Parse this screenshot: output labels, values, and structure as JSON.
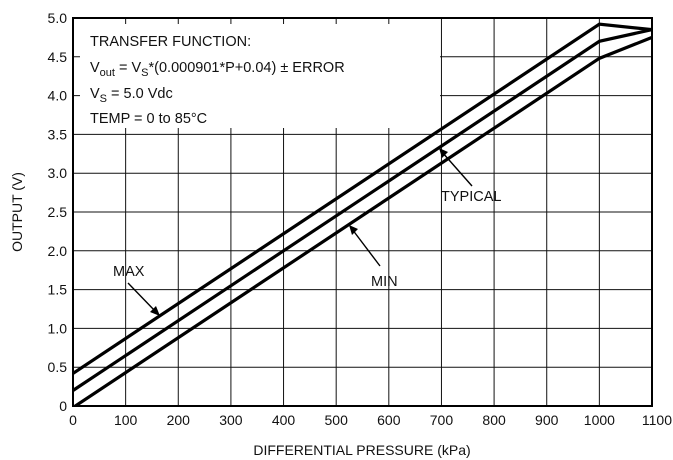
{
  "chart_data": {
    "type": "line",
    "xlabel": "DIFFERENTIAL PRESSURE (kPa)",
    "ylabel": "OUTPUT (V)",
    "xlim": [
      0,
      1100
    ],
    "ylim": [
      0,
      5.0
    ],
    "x_ticks": [
      "0",
      "100",
      "200",
      "300",
      "400",
      "500",
      "600",
      "700",
      "800",
      "900",
      "1000",
      "1100"
    ],
    "y_ticks": [
      "0",
      "0.5",
      "1.0",
      "1.5",
      "2.0",
      "2.5",
      "3.0",
      "3.5",
      "4.0",
      "4.5",
      "5.0"
    ],
    "grid": true,
    "series": [
      {
        "name": "MAX",
        "x": [
          0,
          1000,
          1100
        ],
        "y": [
          0.42,
          4.92,
          4.85
        ]
      },
      {
        "name": "TYPICAL",
        "x": [
          0,
          1000,
          1100
        ],
        "y": [
          0.2,
          4.7,
          4.85
        ]
      },
      {
        "name": "MIN",
        "x": [
          0,
          1000,
          1100
        ],
        "y": [
          -0.02,
          4.48,
          4.75
        ]
      }
    ],
    "annotations": {
      "transfer_title": "TRANSFER FUNCTION:",
      "formula": {
        "v": "V",
        "out_sub": "out",
        "eq": " = V",
        "s_sub": "S",
        "rest": "*(0.000901*P+0.04) ± ERROR"
      },
      "supply": {
        "v": "V",
        "s_sub": "S",
        "rest": " = 5.0 Vdc"
      },
      "temp": "TEMP = 0 to 85°C",
      "label_max": "MAX",
      "label_typical": "TYPICAL",
      "label_min": "MIN"
    }
  }
}
